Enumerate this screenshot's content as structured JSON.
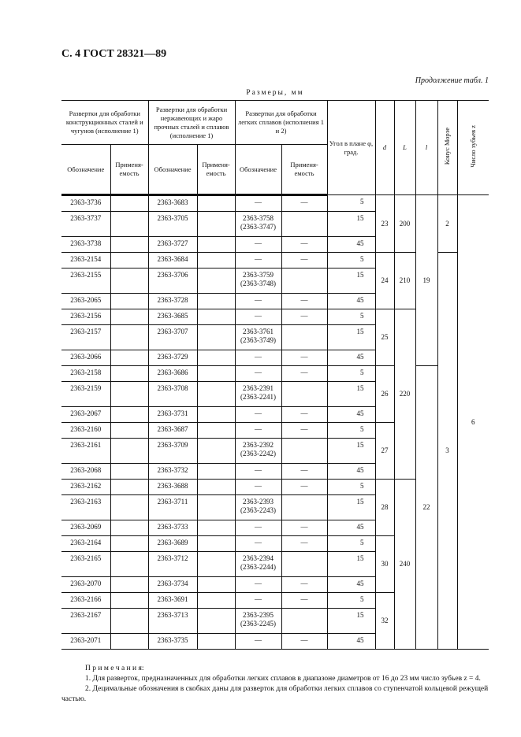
{
  "header": {
    "page": "С. 4 ГОСТ 28321—89",
    "continuation": "Продолжение табл. 1",
    "dimensions": "Размеры, мм"
  },
  "table": {
    "group1": "Развертки для обработки конструкционных сталей и чугунов (исполнение 1)",
    "group2": "Развертки для обработки нержавеющих и жаро прочных сталей и сплавов (исполнение 1)",
    "group3": "Развертки для обработки легких сплавов (исполнения 1 и 2)",
    "designation": "Обозначение",
    "applicability": "Применя-емость",
    "angle": "Угол в плане φ, град.",
    "d": "d",
    "L": "L",
    "l": "l",
    "morse": "Конус Морзе",
    "teeth": "Число зубьев z",
    "rows": [
      [
        "2363-3736",
        "2363-3683",
        "—",
        "—",
        "5"
      ],
      [
        "2363-3737",
        "2363-3705",
        "2363-3758\n(2363-3747)",
        "",
        "15"
      ],
      [
        "2363-3738",
        "2363-3727",
        "—",
        "—",
        "45"
      ],
      [
        "2363-2154",
        "2363-3684",
        "—",
        "—",
        "5"
      ],
      [
        "2363-2155",
        "2363-3706",
        "2363-3759\n(2363-3748)",
        "",
        "15"
      ],
      [
        "2363-2065",
        "2363-3728",
        "—",
        "—",
        "45"
      ],
      [
        "2363-2156",
        "2363-3685",
        "—",
        "—",
        "5"
      ],
      [
        "2363-2157",
        "2363-3707",
        "2363-3761\n(2363-3749)",
        "",
        "15"
      ],
      [
        "2363-2066",
        "2363-3729",
        "—",
        "—",
        "45"
      ],
      [
        "2363-2158",
        "2363-3686",
        "—",
        "—",
        "5"
      ],
      [
        "2363-2159",
        "2363-3708",
        "2363-2391\n(2363-2241)",
        "",
        "15"
      ],
      [
        "2363-2067",
        "2363-3731",
        "—",
        "—",
        "45"
      ],
      [
        "2363-2160",
        "2363-3687",
        "—",
        "—",
        "5"
      ],
      [
        "2363-2161",
        "2363-3709",
        "2363-2392\n(2363-2242)",
        "",
        "15"
      ],
      [
        "2363-2068",
        "2363-3732",
        "—",
        "—",
        "45"
      ],
      [
        "2363-2162",
        "2363-3688",
        "—",
        "—",
        "5"
      ],
      [
        "2363-2163",
        "2363-3711",
        "2363-2393\n(2363-2243)",
        "",
        "15"
      ],
      [
        "2363-2069",
        "2363-3733",
        "—",
        "—",
        "45"
      ],
      [
        "2363-2164",
        "2363-3689",
        "—",
        "—",
        "5"
      ],
      [
        "2363-2165",
        "2363-3712",
        "2363-2394\n(2363-2244)",
        "",
        "15"
      ],
      [
        "2363-2070",
        "2363-3734",
        "—",
        "—",
        "45"
      ],
      [
        "2363-2166",
        "2363-3691",
        "—",
        "—",
        "5"
      ],
      [
        "2363-2167",
        "2363-3713",
        "2363-2395\n(2363-2245)",
        "",
        "15"
      ],
      [
        "2363-2071",
        "2363-3735",
        "—",
        "—",
        "45"
      ]
    ],
    "d_groups": [
      {
        "value": "23",
        "rows": 3
      },
      {
        "value": "24",
        "rows": 3
      },
      {
        "value": "25",
        "rows": 3
      },
      {
        "value": "26",
        "rows": 3
      },
      {
        "value": "27",
        "rows": 3
      },
      {
        "value": "28",
        "rows": 3
      },
      {
        "value": "30",
        "rows": 3
      },
      {
        "value": "32",
        "rows": 3
      }
    ],
    "L_groups": [
      {
        "value": "200",
        "rows": 3
      },
      {
        "value": "210",
        "rows": 3
      },
      {
        "value": "220",
        "rows": 9
      },
      {
        "value": "240",
        "rows": 9
      }
    ],
    "l_groups": [
      {
        "value": "19",
        "rows": 9
      },
      {
        "value": "22",
        "rows": 15
      }
    ],
    "morse_groups": [
      {
        "value": "2",
        "rows": 3
      },
      {
        "value": "3",
        "rows": 21
      }
    ],
    "teeth_groups": [
      {
        "value": "6",
        "rows": 24
      }
    ]
  },
  "notes": {
    "title": "П р и м е ч а н и я:",
    "items": [
      "1. Для разверток, предназначенных для обработки легких сплавов в диапазоне диаметров от 16 до 23 мм число зубьев z = 4.",
      "2. Децимальные обозначения в скобках даны для разверток для обработки легких сплавов со ступенчатой кольцевой режущей частью."
    ]
  }
}
